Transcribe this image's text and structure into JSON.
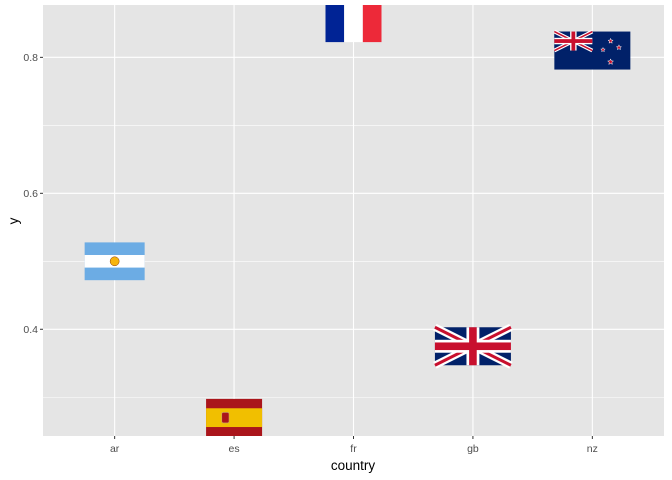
{
  "chart_data": {
    "type": "scatter",
    "xlabel": "country",
    "ylabel": "y",
    "categories": [
      "ar",
      "es",
      "fr",
      "gb",
      "nz"
    ],
    "points": [
      {
        "x": "ar",
        "y": 0.5,
        "flag": "argentina-flag"
      },
      {
        "x": "es",
        "y": 0.27,
        "flag": "spain-flag"
      },
      {
        "x": "fr",
        "y": 0.85,
        "flag": "france-flag"
      },
      {
        "x": "gb",
        "y": 0.375,
        "flag": "united-kingdom-flag"
      },
      {
        "x": "nz",
        "y": 0.81,
        "flag": "new-zealand-flag"
      }
    ],
    "yticks": [
      0.4,
      0.6,
      0.8
    ],
    "ylim": [
      0.243,
      0.877
    ],
    "grid": true,
    "legend": "none"
  },
  "colors": {
    "panel": "#e5e5e5",
    "grid_major": "#ffffff",
    "tick_text": "#4d4d4d"
  }
}
